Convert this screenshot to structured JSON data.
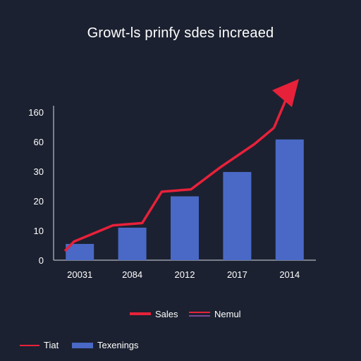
{
  "chart_data": {
    "type": "bar",
    "title": "Growt-ls prinfy sdes increaed",
    "categories": [
      "20031",
      "2084",
      "2012",
      "2017",
      "2014"
    ],
    "y_tick_labels": [
      "0",
      "10",
      "20",
      "30",
      "60",
      "160"
    ],
    "series": [
      {
        "name": "Texenings",
        "type": "bar",
        "color": "#4a69c6",
        "values": [
          7,
          14,
          27.5,
          38,
          52
        ]
      },
      {
        "name": "Sales",
        "type": "line",
        "color": "#e8213a",
        "x": [
          0,
          0.2,
          1,
          1.6,
          2,
          2.6,
          3.2,
          3.9,
          4.3
        ],
        "values": [
          3,
          8,
          15,
          16,
          29.5,
          30.5,
          40,
          50,
          57
        ]
      }
    ],
    "annotations": {
      "arrow_end": {
        "x": 4.6,
        "y": 63
      }
    },
    "legend_top": [
      {
        "label": "Sales",
        "color": "#e8213a",
        "style": "line"
      },
      {
        "label": "Nemul",
        "color": "#e8213a",
        "style": "double-line"
      }
    ],
    "legend_bottom": [
      {
        "label": "Tiat",
        "color": "#e8213a",
        "style": "thin-line"
      },
      {
        "label": "Texenings",
        "color": "#4a69c6",
        "style": "bar"
      }
    ],
    "grid": false
  }
}
